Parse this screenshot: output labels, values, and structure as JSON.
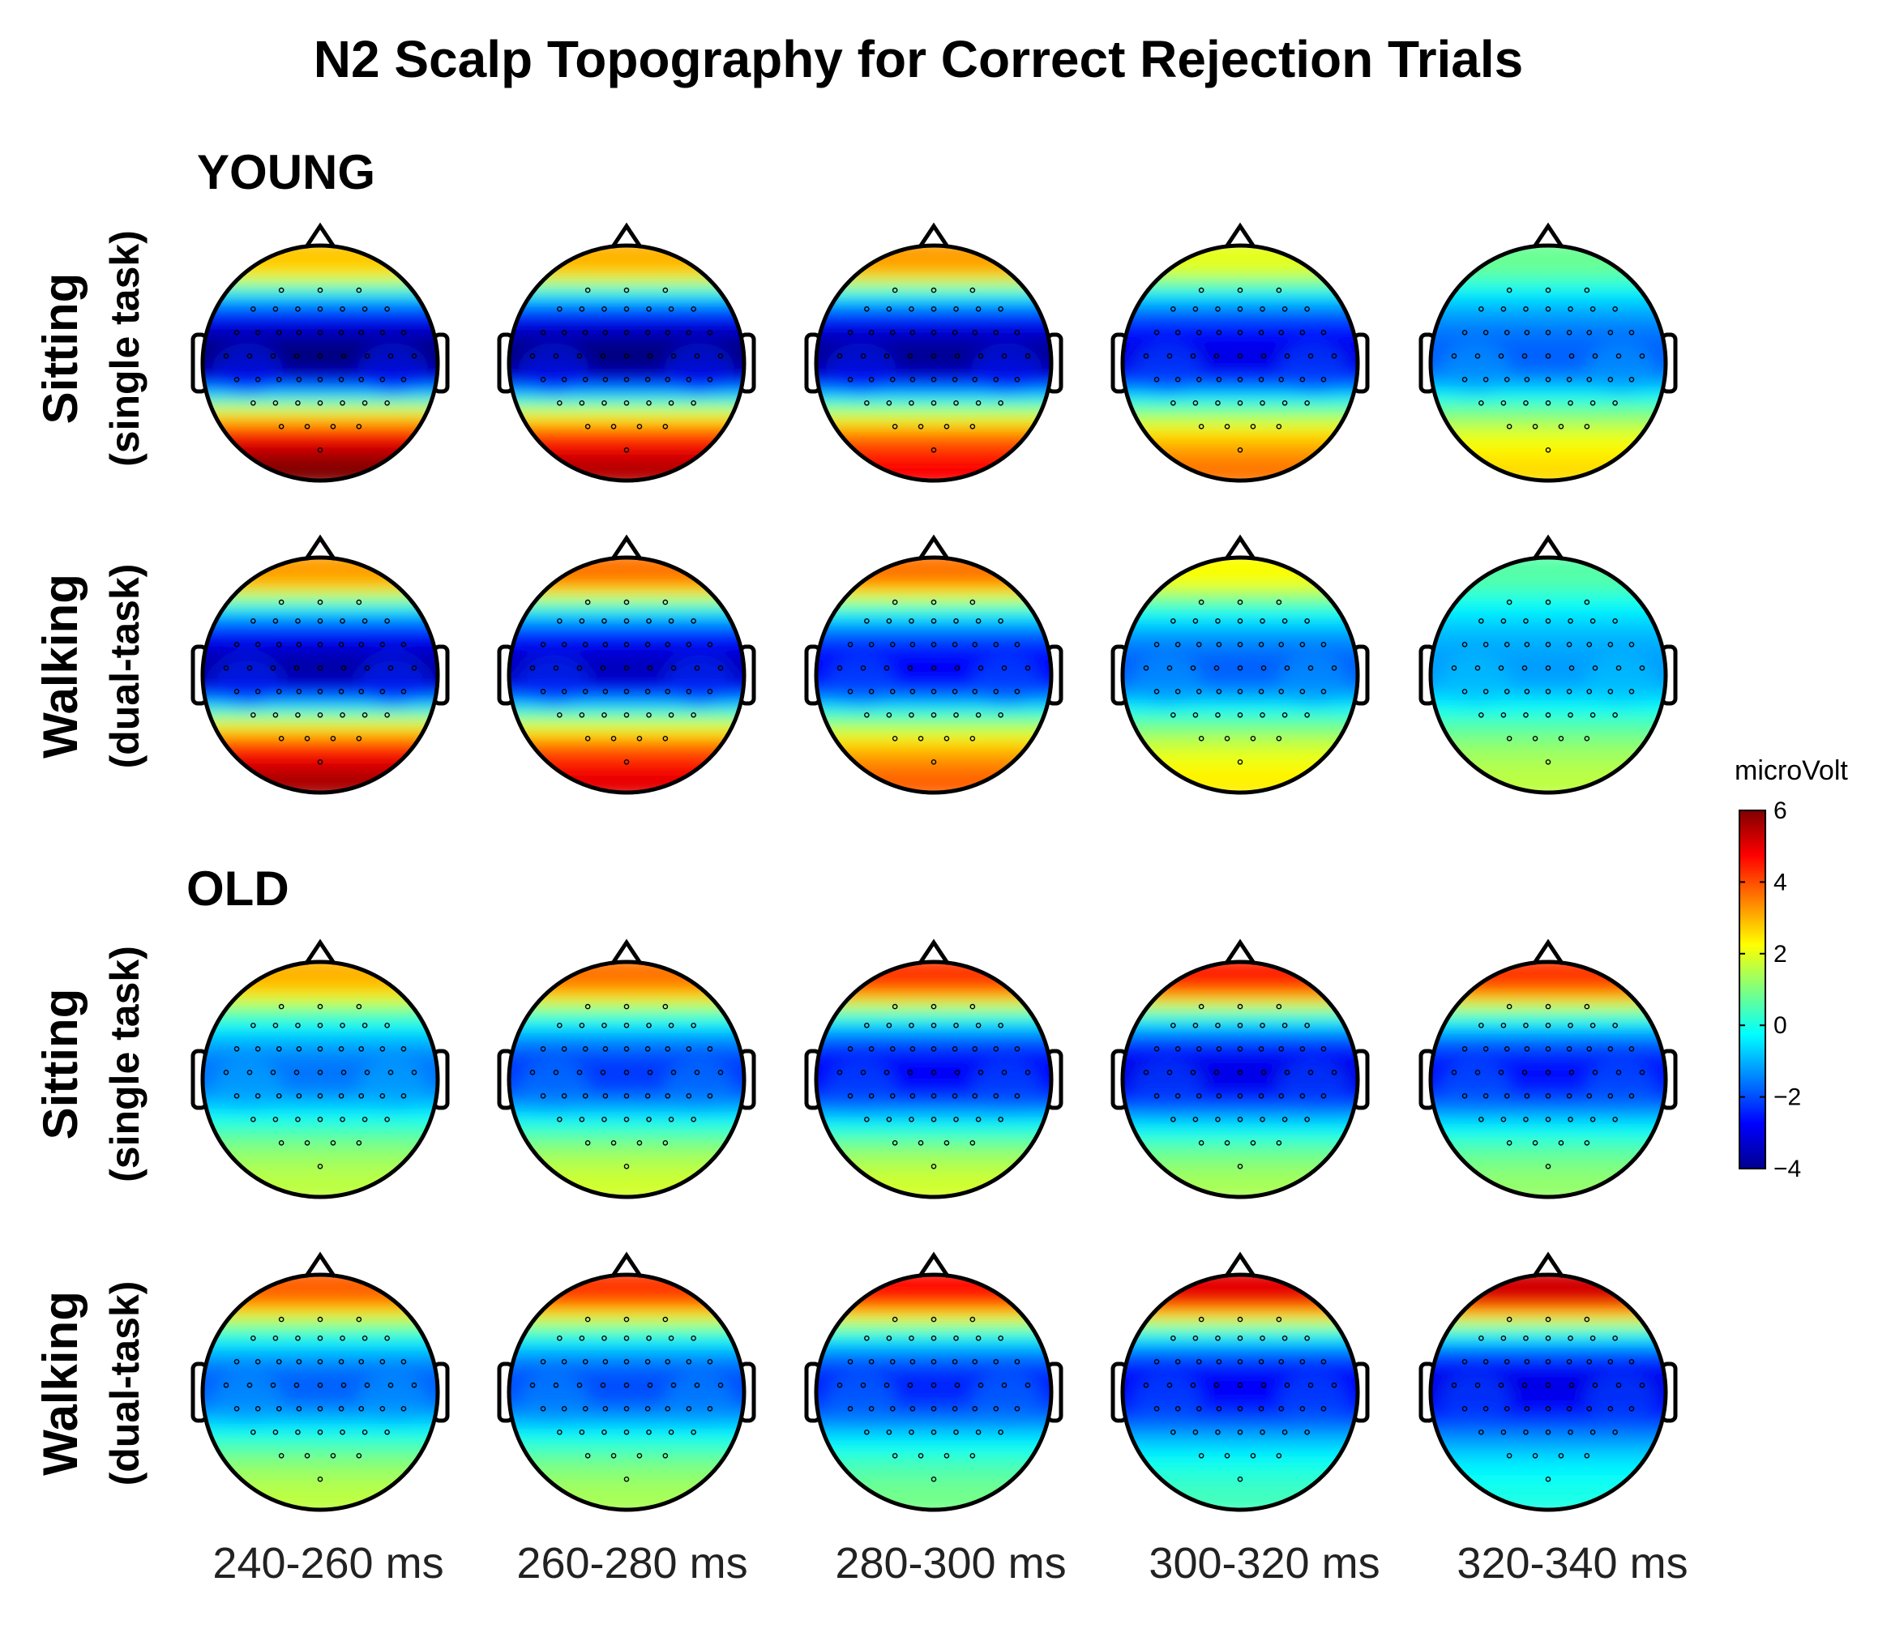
{
  "chart_data": {
    "type": "heatmap",
    "title": "N2 Scalp Topography for Correct Rejection Trials",
    "time_windows": [
      "240-260 ms",
      "260-280 ms",
      "280-300 ms",
      "300-320 ms",
      "320-340 ms"
    ],
    "groups": [
      {
        "name": "YOUNG",
        "rows": [
          {
            "condition": "Sitting",
            "task": "(single task)"
          },
          {
            "condition": "Walking",
            "task": "(dual-task)"
          }
        ]
      },
      {
        "name": "OLD",
        "rows": [
          {
            "condition": "Sitting",
            "task": "(single task)"
          },
          {
            "condition": "Walking",
            "task": "(dual-task)"
          }
        ]
      }
    ],
    "colorbar": {
      "label": "microVolt",
      "range": [
        -4,
        6
      ],
      "ticks": [
        "6",
        "4",
        "2",
        "0",
        "−2",
        "−4"
      ],
      "colormap": "jet",
      "colors": [
        "#00008f",
        "#0000ff",
        "#00ffff",
        "#ffff00",
        "#ff0000",
        "#800000"
      ]
    },
    "topographies": [
      [
        {
          "frontal": 2.8,
          "central": -4.0,
          "posterior": 6.0
        },
        {
          "frontal": 3.0,
          "central": -4.0,
          "posterior": 5.5
        },
        {
          "frontal": 3.2,
          "central": -3.8,
          "posterior": 4.8
        },
        {
          "frontal": 2.0,
          "central": -3.0,
          "posterior": 3.6
        },
        {
          "frontal": 0.8,
          "central": -1.8,
          "posterior": 2.6
        }
      ],
      [
        {
          "frontal": 3.2,
          "central": -3.6,
          "posterior": 5.6
        },
        {
          "frontal": 3.6,
          "central": -3.4,
          "posterior": 5.0
        },
        {
          "frontal": 3.6,
          "central": -2.8,
          "posterior": 3.8
        },
        {
          "frontal": 2.2,
          "central": -1.8,
          "posterior": 2.4
        },
        {
          "frontal": 0.6,
          "central": -1.2,
          "posterior": 1.6
        }
      ],
      [
        {
          "frontal": 3.0,
          "central": -1.6,
          "posterior": 1.6
        },
        {
          "frontal": 3.6,
          "central": -2.2,
          "posterior": 1.8
        },
        {
          "frontal": 4.2,
          "central": -2.8,
          "posterior": 1.8
        },
        {
          "frontal": 4.4,
          "central": -3.0,
          "posterior": 1.4
        },
        {
          "frontal": 4.2,
          "central": -2.6,
          "posterior": 1.2
        }
      ],
      [
        {
          "frontal": 3.8,
          "central": -1.8,
          "posterior": 1.6
        },
        {
          "frontal": 4.2,
          "central": -2.0,
          "posterior": 1.4
        },
        {
          "frontal": 4.6,
          "central": -2.4,
          "posterior": 0.9
        },
        {
          "frontal": 5.0,
          "central": -2.8,
          "posterior": 0.4
        },
        {
          "frontal": 5.2,
          "central": -3.0,
          "posterior": 0.0
        }
      ]
    ]
  }
}
